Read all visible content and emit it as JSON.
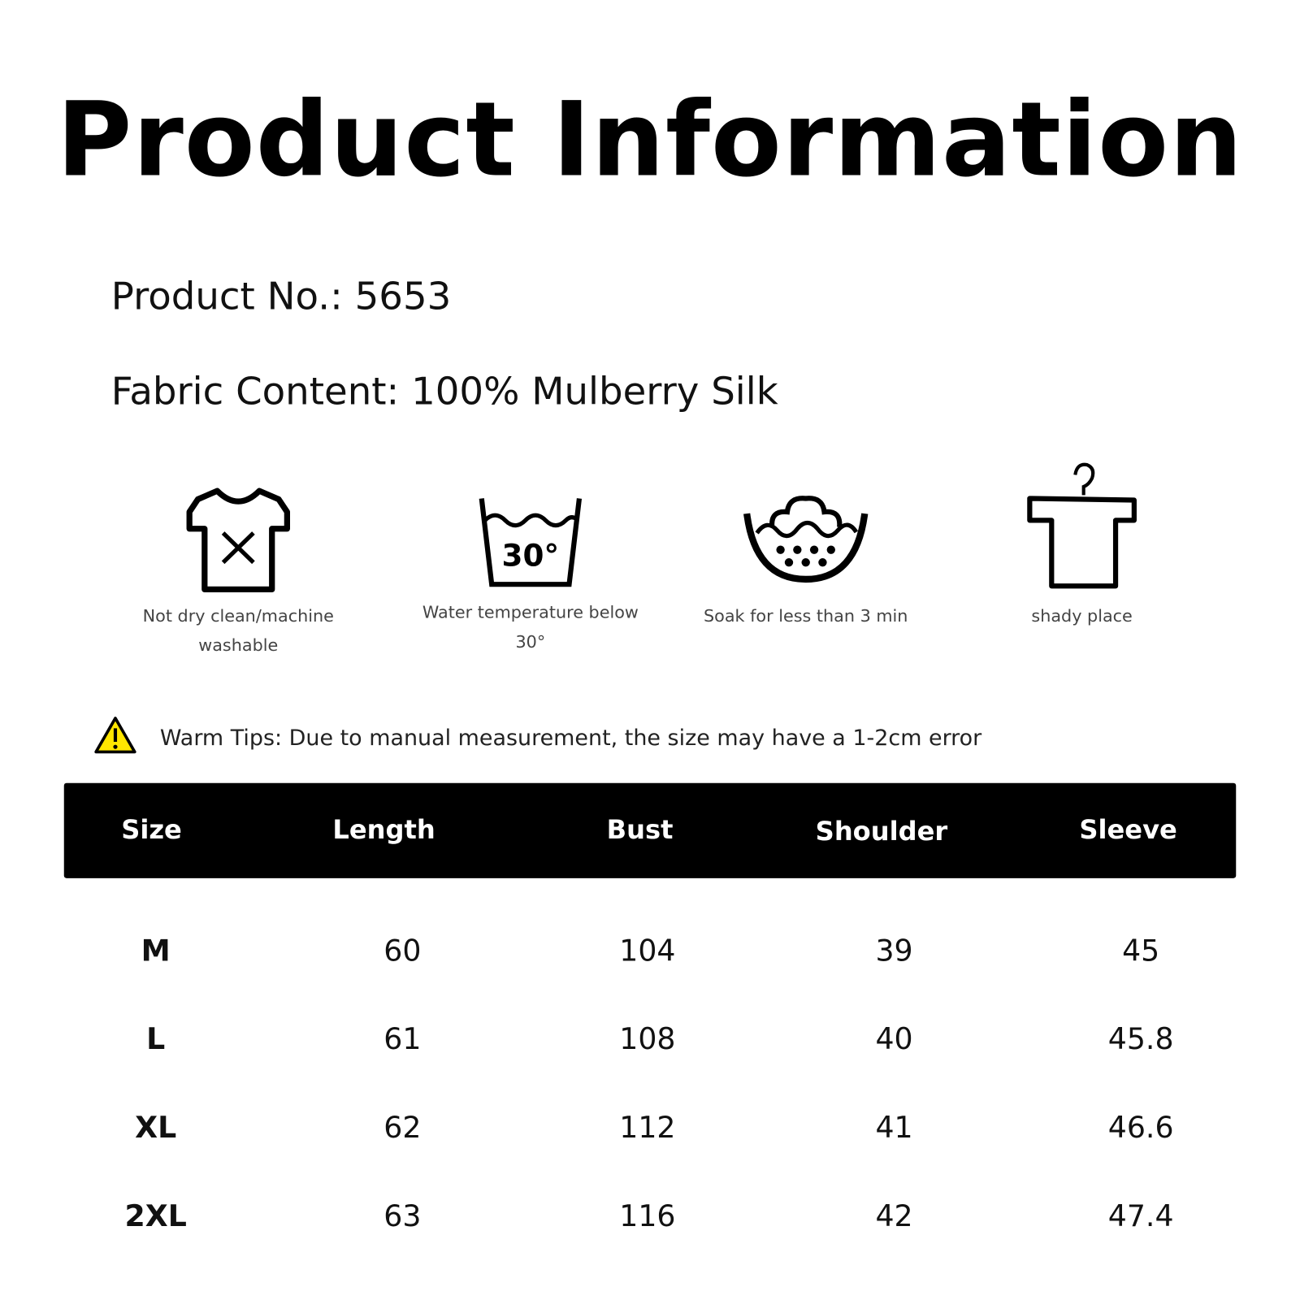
{
  "title": "Product Information",
  "product_no": "Product No.: 5653",
  "fabric": "Fabric Content: 100% Mulberry Silk",
  "care": [
    {
      "icon": "tshirt-x-icon",
      "line1": "Not dry clean/machine",
      "line2": "washable"
    },
    {
      "icon": "wash-tub-30-icon",
      "line1": "Water temperature below",
      "line2": "30°",
      "temp": "30°"
    },
    {
      "icon": "soak-basin-icon",
      "line1": "Soak for less than 3 min",
      "line2": ""
    },
    {
      "icon": "hanger-shirt-icon",
      "line1": "shady place",
      "line2": ""
    }
  ],
  "tip": {
    "icon": "warning-icon",
    "text": "Warm Tips: Due to manual measurement, the size may have a 1-2cm error",
    "color": "#FFE600"
  },
  "table": {
    "headers": [
      "Size",
      "Length",
      "Bust",
      "Shoulder",
      "Sleeve"
    ],
    "rows": [
      [
        "M",
        "60",
        "104",
        "39",
        "45"
      ],
      [
        "L",
        "61",
        "108",
        "40",
        "45.8"
      ],
      [
        "XL",
        "62",
        "112",
        "41",
        "46.6"
      ],
      [
        "2XL",
        "63",
        "116",
        "42",
        "47.4"
      ]
    ]
  }
}
